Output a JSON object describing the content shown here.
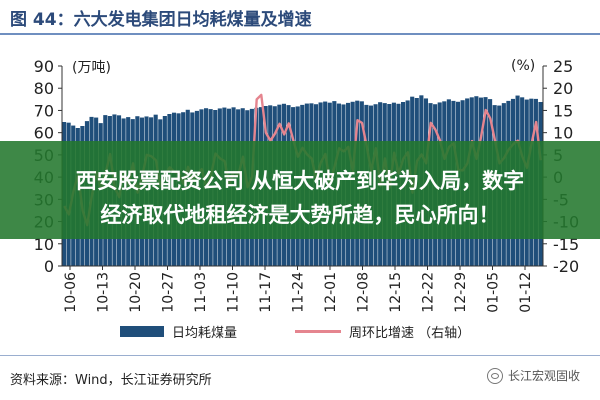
{
  "figure": {
    "title": "图 44：六大发电集团日均耗煤量及增速",
    "source": "资料来源：Wind，长江证券研究所",
    "watermark": "长江宏观固收"
  },
  "overlay": {
    "line1": "西安股票配资公司 从恒大破产到华为入局，数字",
    "line2": "经济取代地租经济是大势所趋，民心所向！"
  },
  "chart_data": {
    "type": "bar",
    "y_left_unit": "(万吨)",
    "y_right_unit": "(%)",
    "ylim_left": [
      0,
      90
    ],
    "ylim_right": [
      -20,
      25
    ],
    "yticks_left": [
      "0",
      "10",
      "20",
      "30",
      "40",
      "50",
      "60",
      "70",
      "80",
      "90"
    ],
    "yticks_right": [
      "-20",
      "-15",
      "-10",
      "-5",
      "0",
      "5",
      "10",
      "15",
      "20",
      "25"
    ],
    "xticks": [
      "10-06",
      "10-13",
      "10-20",
      "10-27",
      "11-03",
      "11-10",
      "11-17",
      "11-24",
      "12-01",
      "12-08",
      "12-15",
      "12-22",
      "12-29",
      "01-05",
      "01-12"
    ],
    "series": [
      {
        "name": "日均耗煤量",
        "axis": "left",
        "type": "bar",
        "color": "#1f4e7a",
        "values": [
          64.8,
          64.5,
          63.2,
          62.1,
          63.0,
          65.2,
          67.1,
          66.8,
          64.3,
          67.9,
          67.5,
          68.2,
          67.8,
          66.4,
          67.0,
          66.1,
          67.4,
          66.8,
          67.3,
          66.9,
          68.1,
          66.0,
          67.5,
          68.4,
          69.0,
          68.7,
          69.2,
          70.3,
          69.1,
          69.8,
          70.5,
          71.0,
          70.6,
          70.2,
          70.9,
          71.3,
          70.8,
          71.4,
          70.5,
          71.0,
          70.1,
          70.7,
          71.2,
          71.5,
          72.0,
          72.3,
          71.9,
          72.6,
          73.0,
          72.4,
          71.5,
          71.8,
          72.5,
          73.1,
          73.2,
          72.8,
          73.6,
          74.0,
          73.5,
          74.2,
          73.1,
          72.7,
          73.4,
          73.9,
          74.4,
          74.1,
          72.5,
          72.2,
          72.8,
          73.7,
          73.3,
          72.9,
          73.5,
          73.0,
          73.8,
          74.5,
          76.2,
          75.6,
          76.8,
          75.4,
          73.3,
          72.8,
          73.6,
          74.1,
          75.0,
          74.3,
          73.9,
          74.6,
          75.4,
          75.9,
          76.4,
          75.8,
          76.0,
          75.1,
          72.4,
          72.2,
          73.3,
          74.3,
          75.2,
          76.7,
          75.9,
          74.9,
          75.3,
          75.2,
          73.8
        ]
      },
      {
        "name": "周环比增速（右轴）",
        "axis": "right",
        "type": "line",
        "color": "#e5858f",
        "values": [
          -6.5,
          -8.4,
          -3.2,
          0.5,
          -7.5,
          -10.8,
          -4.3,
          1.2,
          -2.5,
          0.8,
          5.2,
          -2.3,
          -4.5,
          1.2,
          -1.8,
          3.1,
          -3.5,
          0.2,
          5.0,
          4.7,
          3.8,
          -2.1,
          0.3,
          2.2,
          1.2,
          0.8,
          -1.5,
          2.3,
          -0.5,
          0.6,
          1.8,
          -2.2,
          0.3,
          5.3,
          4.2,
          3.6,
          -1.8,
          1.2,
          0.5,
          4.6,
          -2.3,
          0.1,
          17.5,
          18.5,
          10.0,
          8.2,
          9.8,
          12.0,
          9.6,
          12.1,
          8.3,
          4.6,
          6.6,
          5.1,
          4.2,
          -0.5,
          3.3,
          5.2,
          -1.5,
          2.4,
          6.5,
          5.8,
          6.8,
          1.3,
          12.8,
          12.2,
          7.0,
          1.4,
          6.5,
          -2.0,
          4.2,
          -2.4,
          5.5,
          0.8,
          4.1,
          5.6,
          -3.5,
          3.6,
          5.1,
          3.1,
          12.2,
          10.7,
          8.3,
          4.1,
          6.8,
          7.6,
          1.6,
          1.5,
          3.1,
          8.1,
          4.1,
          9.2,
          15.1,
          13.2,
          8.3,
          3.1,
          4.3,
          6.2,
          7.4,
          8.2,
          4.6,
          2.1,
          7.5,
          12.4,
          3.8
        ]
      }
    ],
    "grid": false,
    "legend_position": "bottom"
  },
  "legend": {
    "bar_label": "日均耗煤量",
    "line_label": "周环比增速  （右轴）"
  },
  "colors": {
    "bar": "#1f4e7a",
    "line": "#e5858f",
    "title": "#2c4a7a",
    "overlay": "#23782d"
  }
}
